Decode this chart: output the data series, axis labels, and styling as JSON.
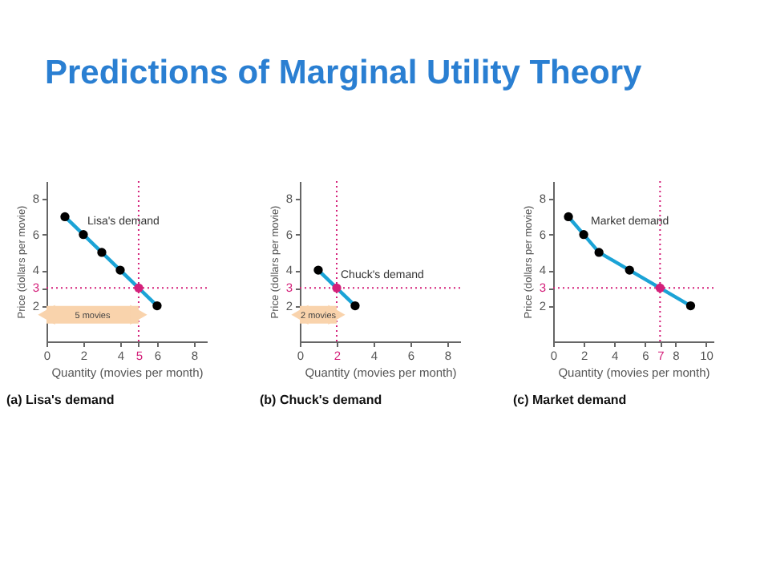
{
  "chart_data": [
    {
      "type": "line",
      "title": "(a) Lisa's demand",
      "xlabel": "Quantity (movies per month)",
      "ylabel": "Price (dollars per movie)",
      "xlim": [
        0,
        8.7
      ],
      "ylim": [
        0,
        9
      ],
      "xticks": [
        0,
        2,
        4,
        5,
        6,
        8
      ],
      "yticks": [
        2,
        3,
        4,
        6,
        8
      ],
      "series": [
        {
          "type": "line",
          "marker": "none",
          "color": "#1ba3d6",
          "x": [
            1,
            2,
            3,
            4,
            5,
            6
          ],
          "values": [
            7,
            6,
            5,
            4,
            3,
            2
          ]
        },
        {
          "type": "scatter",
          "marker": "circle",
          "color": "#000000",
          "x": [
            1,
            2,
            3,
            4,
            6
          ],
          "values": [
            7,
            6,
            5,
            4,
            2
          ]
        },
        {
          "type": "scatter",
          "marker": "circle",
          "color": "#d4207a",
          "x": [
            5
          ],
          "values": [
            3
          ]
        }
      ],
      "ref_lines": [
        {
          "axis": "x",
          "value": 5,
          "label": null,
          "color": "#d4207a",
          "line_style": "dotted"
        },
        {
          "axis": "y",
          "value": 3,
          "label": null,
          "color": "#d4207a",
          "line_style": "dotted"
        }
      ],
      "annotations": [
        "Predictions of Marginal Utility Theory",
        "Lisa's demand",
        "5 movies"
      ]
    },
    {
      "type": "line",
      "title": "(b) Chuck's demand",
      "xlabel": "Quantity (movies per month)",
      "ylabel": "Price (dollars per movie)",
      "xlim": [
        0,
        8.7
      ],
      "ylim": [
        0,
        9
      ],
      "xticks": [
        0,
        2,
        4,
        6,
        8
      ],
      "yticks": [
        2,
        3,
        4,
        6,
        8
      ],
      "series": [
        {
          "type": "line",
          "marker": "none",
          "color": "#1ba3d6",
          "x": [
            1,
            2,
            3
          ],
          "values": [
            4,
            3,
            2
          ]
        },
        {
          "type": "scatter",
          "marker": "circle",
          "color": "#000000",
          "x": [
            1,
            3
          ],
          "values": [
            4,
            2
          ]
        },
        {
          "type": "scatter",
          "marker": "circle",
          "color": "#d4207a",
          "x": [
            2
          ],
          "values": [
            3
          ]
        }
      ],
      "ref_lines": [
        {
          "axis": "x",
          "value": 2,
          "label": null,
          "color": "#d4207a",
          "line_style": "dotted"
        },
        {
          "axis": "y",
          "value": 3,
          "label": null,
          "color": "#d4207a",
          "line_style": "dotted"
        }
      ],
      "annotations": [
        "Chuck's demand",
        "2 movies"
      ]
    },
    {
      "type": "line",
      "title": "(c) Market demand",
      "xlabel": "Quantity (movies per month)",
      "ylabel": "Price (dollars per movie)",
      "xlim": [
        0,
        10.5
      ],
      "ylim": [
        0,
        9
      ],
      "xticks": [
        0,
        2,
        4,
        6,
        7,
        8,
        10
      ],
      "yticks": [
        2,
        3,
        4,
        6,
        8
      ],
      "series": [
        {
          "type": "line",
          "marker": "none",
          "color": "#1ba3d6",
          "x": [
            1,
            2,
            3,
            5,
            7,
            9
          ],
          "values": [
            7,
            6,
            5,
            4,
            3,
            2
          ]
        },
        {
          "type": "scatter",
          "marker": "circle",
          "color": "#000000",
          "x": [
            1,
            2,
            3,
            5,
            9
          ],
          "values": [
            7,
            6,
            5,
            4,
            2
          ]
        },
        {
          "type": "scatter",
          "marker": "circle",
          "color": "#d4207a",
          "x": [
            7
          ],
          "values": [
            3
          ]
        }
      ],
      "ref_lines": [
        {
          "axis": "x",
          "value": 7,
          "label": null,
          "color": "#d4207a",
          "line_style": "dotted"
        },
        {
          "axis": "y",
          "value": 3,
          "label": null,
          "color": "#d4207a",
          "line_style": "dotted"
        }
      ],
      "annotations": [
        "Market demand"
      ]
    }
  ]
}
